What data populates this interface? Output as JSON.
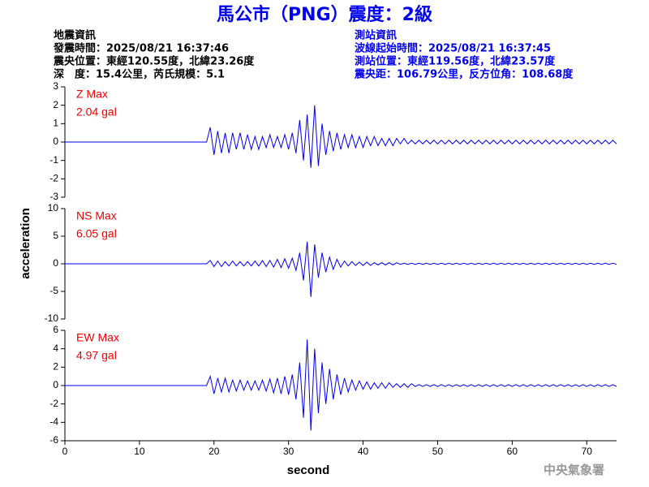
{
  "header": {
    "title": "馬公市（PNG）震度：2級",
    "left": [
      "地震資訊",
      "發震時間：2025/08/21 16:37:46",
      "震央位置：東經120.55度，北緯23.26度",
      "深　度：15.4公里，芮氏規模：5.1"
    ],
    "right": [
      "測站資訊",
      "波線起始時間：2025/08/21 16:37:45",
      "測站位置：東經119.56度，北緯23.57度",
      "震央距：106.79公里，反方位角：108.68度"
    ]
  },
  "footer": "中央氣象署",
  "chart_data": {
    "type": "line",
    "xlabel": "second",
    "ylabel": "acceleration",
    "xlim": [
      0,
      74
    ],
    "xticks": [
      0,
      10,
      20,
      30,
      40,
      50,
      60,
      70
    ],
    "x": [
      0,
      19,
      19.5,
      20,
      20.5,
      21,
      21.5,
      22,
      22.5,
      23,
      23.5,
      24,
      24.5,
      25,
      25.5,
      26,
      26.5,
      27,
      27.5,
      28,
      28.5,
      29,
      29.5,
      30,
      30.5,
      31,
      31.5,
      32,
      32.5,
      33,
      33.5,
      34,
      34.5,
      35,
      35.5,
      36,
      36.5,
      37,
      37.5,
      38,
      38.5,
      39,
      39.5,
      40,
      40.5,
      41,
      41.5,
      42,
      42.5,
      43,
      43.5,
      44,
      44.5,
      45,
      45.5,
      46,
      46.5,
      47,
      47.5,
      48,
      48.5,
      49,
      49.5,
      50,
      50.5,
      51,
      51.5,
      52,
      52.5,
      53,
      53.5,
      54,
      54.5,
      55,
      55.5,
      56,
      56.5,
      57,
      57.5,
      58,
      58.5,
      59,
      59.5,
      60,
      60.5,
      61,
      61.5,
      62,
      62.5,
      63,
      63.5,
      64,
      64.5,
      65,
      65.5,
      66,
      66.5,
      67,
      67.5,
      68,
      68.5,
      69,
      69.5,
      70,
      70.5,
      71,
      71.5,
      72,
      72.5,
      73,
      73.5,
      74
    ],
    "panels": [
      {
        "ylim": [
          -3,
          3
        ],
        "yticks": [
          -3,
          -2,
          -1,
          0,
          1,
          2,
          3
        ],
        "label_color": "#ee0000",
        "series": [
          {
            "name": "Z Max",
            "max_label": "2.04 gal",
            "color": "#0000ee",
            "values": [
              0,
              0,
              0.8,
              -0.7,
              0.6,
              -0.6,
              0.5,
              -0.6,
              0.5,
              -0.4,
              0.5,
              -0.4,
              0.4,
              -0.4,
              0.3,
              -0.4,
              0.3,
              -0.3,
              0.4,
              -0.3,
              0.3,
              -0.3,
              0.4,
              -0.4,
              0.5,
              -0.6,
              1.2,
              -1.0,
              1.5,
              -1.4,
              2.0,
              -1.3,
              1.0,
              -0.7,
              0.6,
              -0.5,
              0.5,
              -0.4,
              0.4,
              -0.3,
              0.4,
              -0.3,
              0.3,
              -0.3,
              0.3,
              -0.2,
              0.3,
              -0.2,
              0.2,
              -0.2,
              0.2,
              -0.2,
              0.2,
              -0.1,
              0.2,
              -0.1,
              0.1,
              -0.1,
              0.1,
              -0.1,
              0.1,
              -0.1,
              0.1,
              -0.1,
              0.1,
              -0.1,
              0.1,
              -0.1,
              0.1,
              -0.1,
              0.1,
              -0.1,
              0.1,
              -0.1,
              0.1,
              -0.1,
              0.1,
              -0.1,
              0.1,
              -0.1,
              0.1,
              -0.1,
              0.1,
              -0.1,
              0.1,
              -0.1,
              0.1,
              -0.1,
              0.1,
              -0.1,
              0.1,
              -0.1,
              0.1,
              -0.1,
              0.1,
              -0.1,
              0.1,
              -0.1,
              0.1,
              -0.1,
              0.1,
              -0.1,
              0.1,
              -0.1,
              0.1,
              -0.1,
              0.1,
              -0.1,
              0.1,
              -0.1,
              0.1,
              -0.1
            ]
          }
        ]
      },
      {
        "ylim": [
          -10,
          10
        ],
        "yticks": [
          -10,
          -5,
          0,
          5,
          10
        ],
        "label_color": "#ee0000",
        "series": [
          {
            "name": "NS Max",
            "max_label": "6.05 gal",
            "color": "#0000ee",
            "values": [
              0,
              0,
              0.6,
              -0.5,
              0.5,
              -0.5,
              0.4,
              -0.4,
              0.5,
              -0.4,
              0.4,
              -0.4,
              0.4,
              -0.4,
              0.5,
              -0.4,
              0.6,
              -0.5,
              0.6,
              -0.6,
              0.8,
              -0.7,
              0.9,
              -0.8,
              1.0,
              -1.2,
              2.0,
              -3.0,
              4.0,
              -6.0,
              3.5,
              -2.5,
              2.0,
              -1.5,
              1.2,
              -1.0,
              0.8,
              -0.6,
              0.5,
              -0.4,
              0.4,
              -0.3,
              0.3,
              -0.3,
              0.3,
              -0.3,
              0.2,
              -0.2,
              0.2,
              -0.2,
              0.2,
              -0.2,
              0.2,
              -0.1,
              0.1,
              -0.1,
              0.1,
              -0.1,
              0.1,
              -0.1,
              0.1,
              -0.1,
              0.1,
              -0.1,
              0.1,
              -0.1,
              0.1,
              -0.1,
              0.1,
              -0.1,
              0.1,
              -0.1,
              0.1,
              -0.1,
              0.1,
              -0.1,
              0.1,
              -0.1,
              0.1,
              -0.1,
              0.1,
              -0.1,
              0.1,
              -0.1,
              0.1,
              -0.1,
              0.1,
              -0.1,
              0.1,
              -0.1,
              0.1,
              -0.1,
              0.1,
              -0.1,
              0.1,
              -0.1,
              0.1,
              -0.1,
              0.1,
              -0.1,
              0.1,
              -0.1,
              0.1,
              -0.1,
              0.1,
              -0.1,
              0.1,
              -0.1,
              0.1,
              -0.1,
              0.1,
              -0.1
            ]
          }
        ]
      },
      {
        "ylim": [
          -6,
          6
        ],
        "yticks": [
          -6,
          -4,
          -2,
          0,
          2,
          4,
          6
        ],
        "label_color": "#ee0000",
        "series": [
          {
            "name": "EW Max",
            "max_label": "4.97 gal",
            "color": "#0000ee",
            "values": [
              0,
              0,
              1.0,
              -0.9,
              0.8,
              -0.7,
              0.8,
              -0.7,
              0.6,
              -0.6,
              0.6,
              -0.5,
              0.5,
              -0.5,
              0.5,
              -0.5,
              0.6,
              -0.6,
              0.7,
              -0.8,
              0.8,
              -0.9,
              1.0,
              -1.0,
              1.2,
              -1.5,
              2.5,
              -3.5,
              5.0,
              -4.9,
              4.0,
              -3.0,
              2.5,
              -2.0,
              1.8,
              -1.5,
              1.2,
              -1.0,
              0.8,
              -0.7,
              0.6,
              -0.5,
              0.5,
              -0.4,
              0.4,
              -0.4,
              0.3,
              -0.3,
              0.3,
              -0.3,
              0.3,
              -0.2,
              0.2,
              -0.2,
              0.2,
              -0.2,
              0.2,
              -0.1,
              0.1,
              -0.1,
              0.1,
              -0.1,
              0.1,
              -0.1,
              0.1,
              -0.1,
              0.1,
              -0.1,
              0.1,
              -0.1,
              0.1,
              -0.1,
              0.1,
              -0.1,
              0.1,
              -0.1,
              0.1,
              -0.1,
              0.1,
              -0.1,
              0.1,
              -0.1,
              0.1,
              -0.1,
              0.1,
              -0.1,
              0.1,
              -0.1,
              0.1,
              -0.1,
              0.1,
              -0.1,
              0.1,
              -0.1,
              0.1,
              -0.1,
              0.1,
              -0.1,
              0.1,
              -0.1,
              0.1,
              -0.1,
              0.1,
              -0.1,
              0.1,
              -0.1,
              0.1,
              -0.1,
              0.1,
              -0.1,
              0.1,
              -0.1
            ]
          }
        ]
      }
    ]
  }
}
